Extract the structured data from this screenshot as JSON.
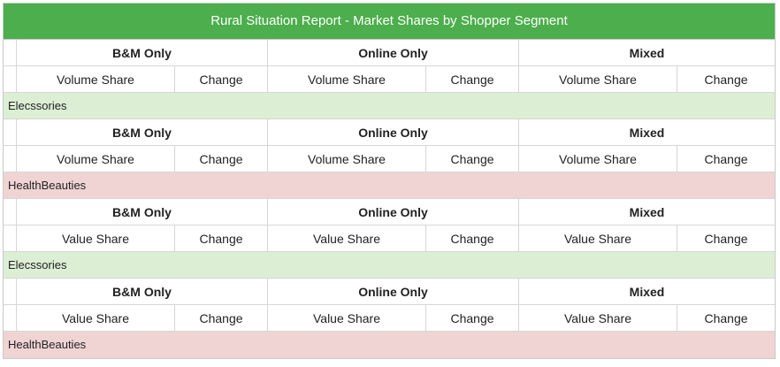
{
  "title": "Rural Situation Report - Market Shares by Shopper Segment",
  "colors": {
    "title_bar": "#4cae4c",
    "category_green": "#dcefd4",
    "category_pink": "#f0d4d4"
  },
  "blocks": [
    {
      "segments": [
        "B&M Only",
        "Online Only",
        "Mixed"
      ],
      "metric_label": "Volume Share",
      "change_label": "Change",
      "category": "Elecssories",
      "category_color": "green"
    },
    {
      "segments": [
        "B&M Only",
        "Online Only",
        "Mixed"
      ],
      "metric_label": "Volume Share",
      "change_label": "Change",
      "category": "HealthBeauties",
      "category_color": "pink"
    },
    {
      "segments": [
        "B&M Only",
        "Online Only",
        "Mixed"
      ],
      "metric_label": "Value Share",
      "change_label": "Change",
      "category": "Elecssories",
      "category_color": "green"
    },
    {
      "segments": [
        "B&M Only",
        "Online Only",
        "Mixed"
      ],
      "metric_label": "Value Share",
      "change_label": "Change",
      "category": "HealthBeauties",
      "category_color": "pink"
    }
  ]
}
